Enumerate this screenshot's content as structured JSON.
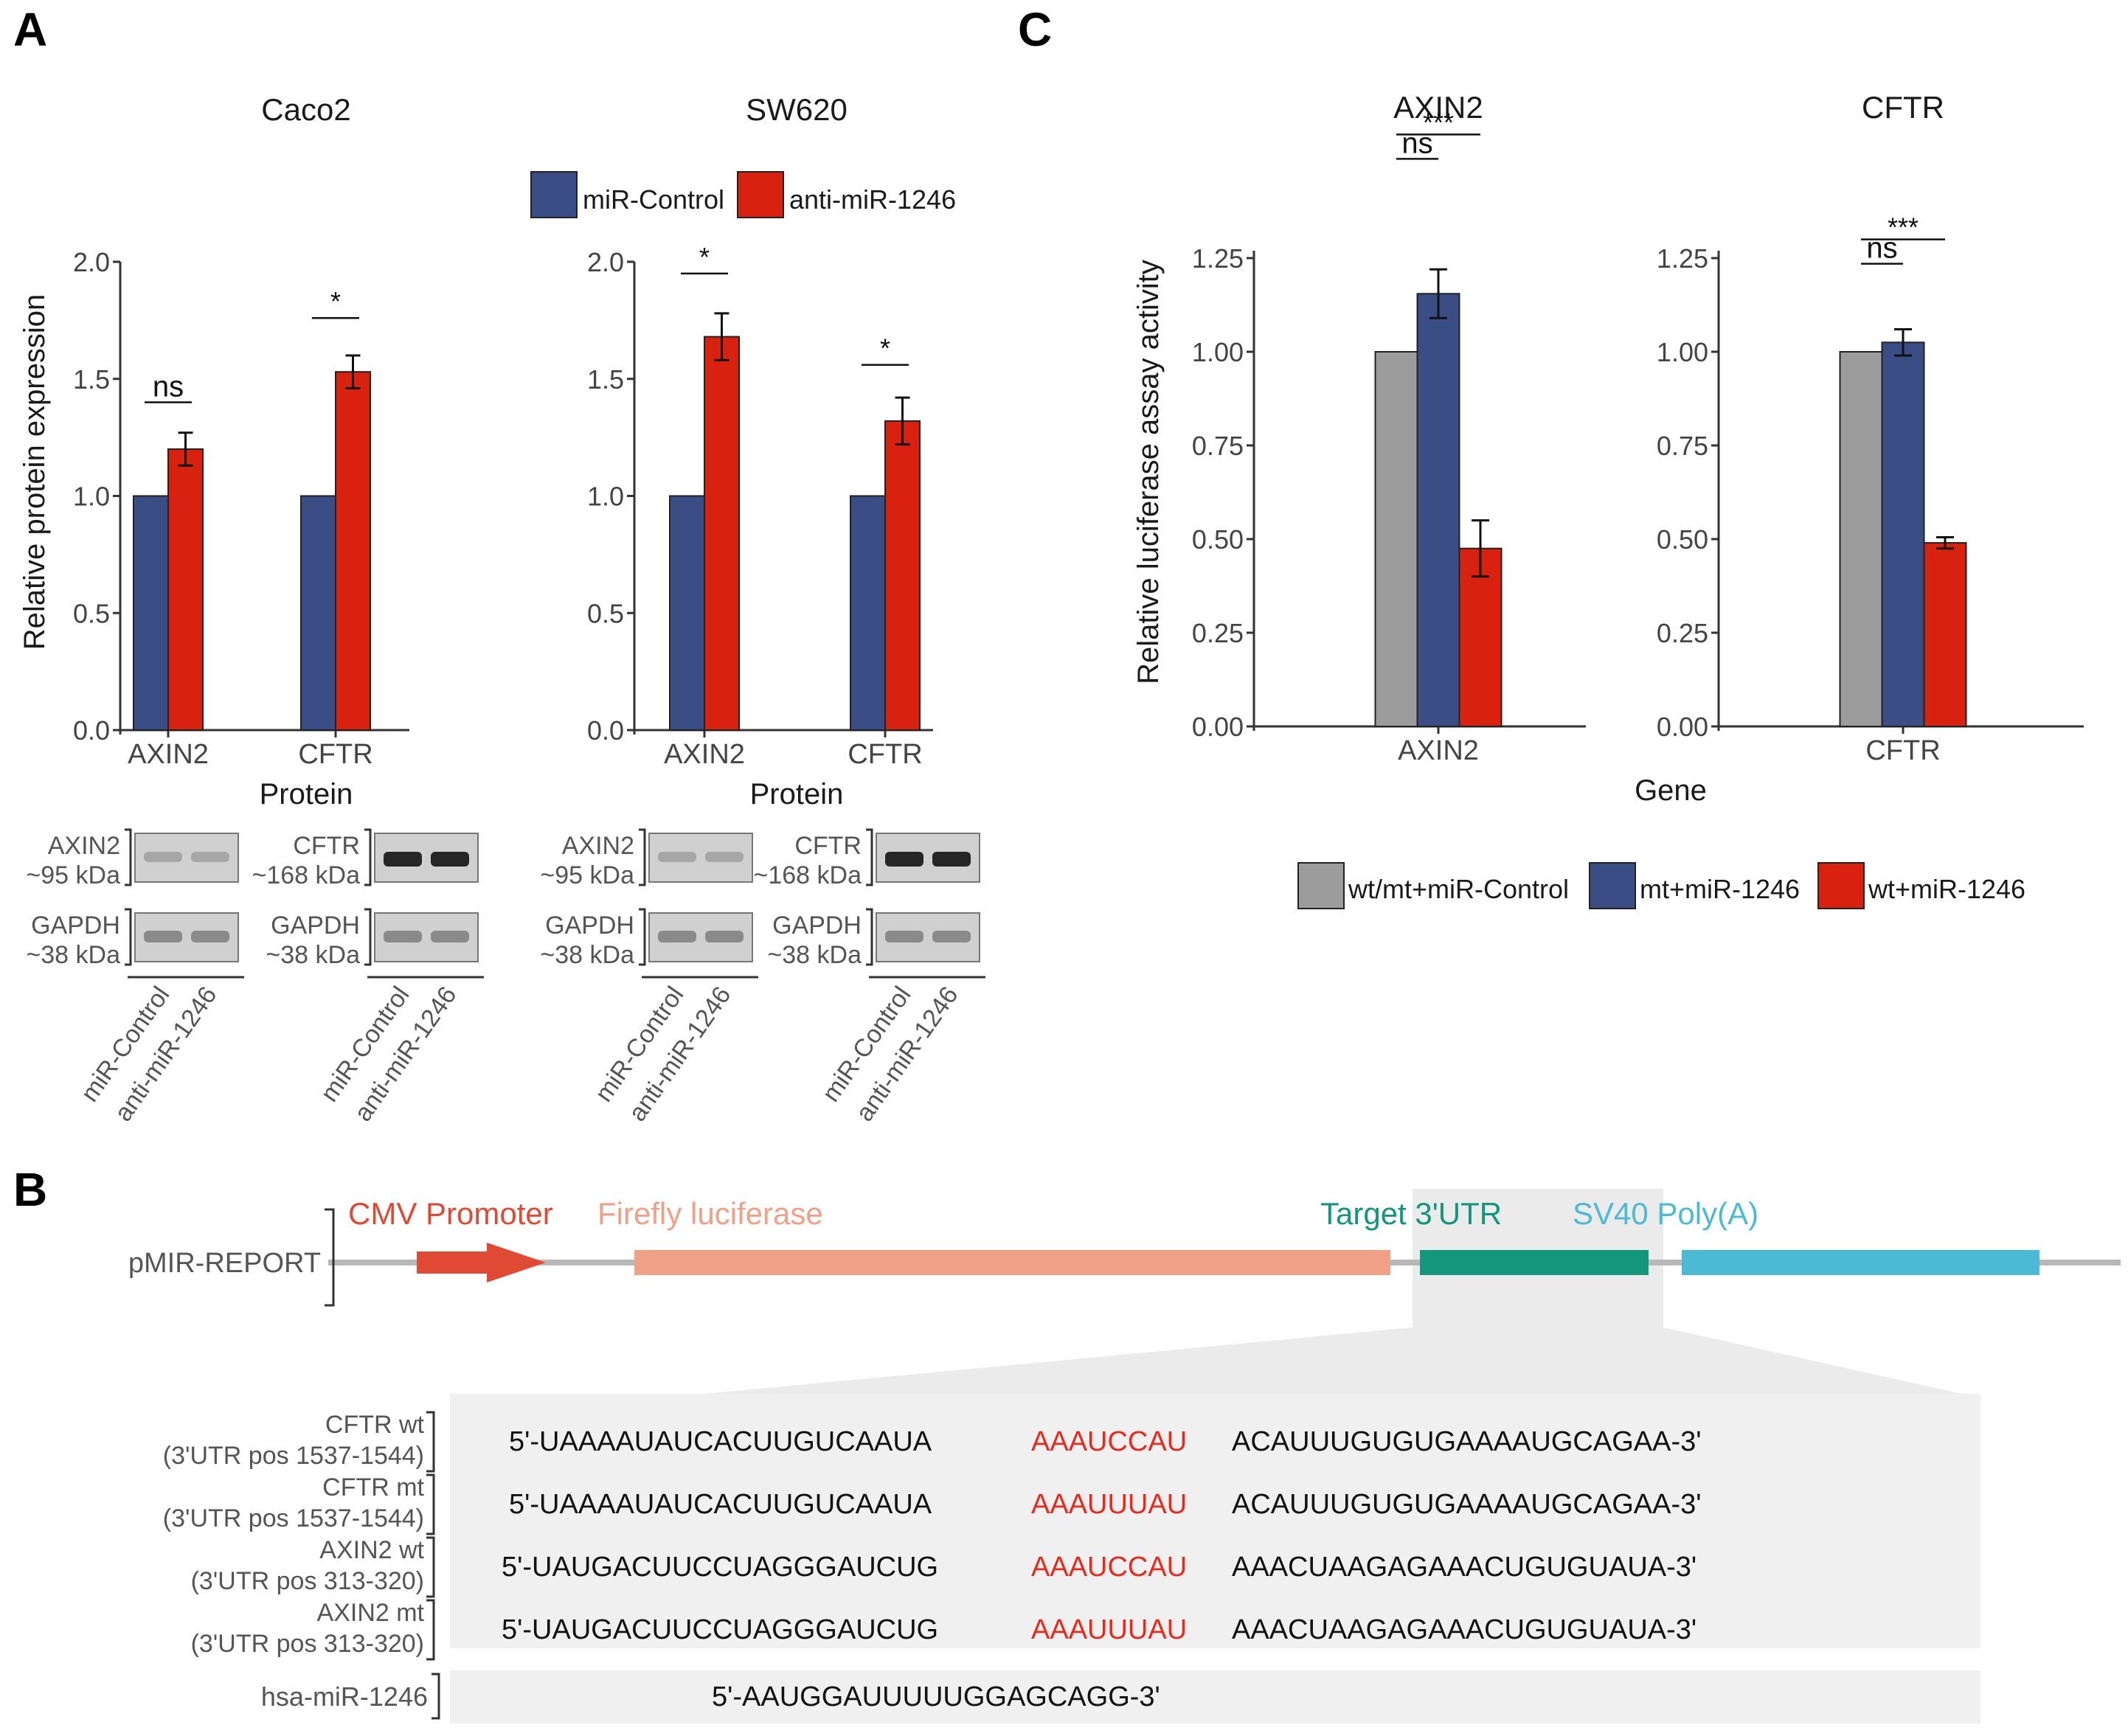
{
  "panel_labels": {
    "a": "A",
    "b": "B",
    "c": "C"
  },
  "colors": {
    "control": "#3a4e85",
    "anti": "#d9210f",
    "grey_bar": "#9c9c9c",
    "cmv": "#e04a35",
    "firefly": "#f1a088",
    "target": "#13967c",
    "sv40": "#4cbad5",
    "seed": "#e8291c",
    "zoom_fill": "#ebebeb"
  },
  "panel_a": {
    "legend": [
      "miR-Control",
      "anti-miR-1246"
    ],
    "ylabel": "Relative protein expression",
    "xlabel": "Protein",
    "blot_lanes": [
      "miR-Control",
      "anti-miR-1246"
    ],
    "blots": [
      {
        "target": "AXIN2",
        "target_kda": "~95 kDa",
        "loading": "GAPDH",
        "loading_kda": "~38 kDa"
      },
      {
        "target": "CFTR",
        "target_kda": "~168 kDa",
        "loading": "GAPDH",
        "loading_kda": "~38 kDa"
      },
      {
        "target": "AXIN2",
        "target_kda": "~95 kDa",
        "loading": "GAPDH",
        "loading_kda": "~38 kDa"
      },
      {
        "target": "CFTR",
        "target_kda": "~168 kDa",
        "loading": "GAPDH",
        "loading_kda": "~38 kDa"
      }
    ]
  },
  "panel_c": {
    "legend": [
      "wt/mt+miR-Control",
      "mt+miR-1246",
      "wt+miR-1246"
    ],
    "ylabel": "Relative luciferase assay activity",
    "xlabel": "Gene"
  },
  "chart_data": [
    {
      "type": "bar",
      "title": "Caco2",
      "categories": [
        "AXIN2",
        "CFTR"
      ],
      "series": [
        {
          "name": "miR-Control",
          "values": [
            1.0,
            1.0
          ],
          "errors": [
            0,
            0
          ]
        },
        {
          "name": "anti-miR-1246",
          "values": [
            1.2,
            1.53
          ],
          "errors": [
            0.07,
            0.07
          ]
        }
      ],
      "ylim": [
        0,
        2.0
      ],
      "yticks": [
        "0.0",
        "0.5",
        "1.0",
        "1.5",
        "2.0"
      ],
      "yvals": [
        0,
        0.5,
        1.0,
        1.5,
        2.0
      ],
      "ylabel": "Relative protein expression",
      "xlabel": "Protein",
      "significance": [
        {
          "category": 0,
          "label": "ns",
          "y": 1.4
        },
        {
          "category": 1,
          "label": "*",
          "y": 1.76
        }
      ]
    },
    {
      "type": "bar",
      "title": "SW620",
      "categories": [
        "AXIN2",
        "CFTR"
      ],
      "series": [
        {
          "name": "miR-Control",
          "values": [
            1.0,
            1.0
          ],
          "errors": [
            0,
            0
          ]
        },
        {
          "name": "anti-miR-1246",
          "values": [
            1.68,
            1.32
          ],
          "errors": [
            0.1,
            0.1
          ]
        }
      ],
      "ylim": [
        0,
        2.0
      ],
      "yticks": [
        "0.0",
        "0.5",
        "1.0",
        "1.5",
        "2.0"
      ],
      "yvals": [
        0,
        0.5,
        1.0,
        1.5,
        2.0
      ],
      "xlabel": "Protein",
      "significance": [
        {
          "category": 0,
          "label": "*",
          "y": 1.95
        },
        {
          "category": 1,
          "label": "*",
          "y": 1.56
        }
      ]
    },
    {
      "type": "bar",
      "title": "AXIN2",
      "categories": [
        "AXIN2"
      ],
      "series": [
        {
          "name": "wt/mt+miR-Control",
          "values": [
            1.0
          ],
          "errors": [
            0
          ]
        },
        {
          "name": "mt+miR-1246",
          "values": [
            1.155
          ],
          "errors": [
            0.065
          ]
        },
        {
          "name": "wt+miR-1246",
          "values": [
            0.475
          ],
          "errors": [
            0.075
          ]
        }
      ],
      "ylim": [
        0,
        1.25
      ],
      "yticks": [
        "0.00",
        "0.25",
        "0.50",
        "0.75",
        "1.00",
        "1.25"
      ],
      "yvals": [
        0,
        0.25,
        0.5,
        0.75,
        1.0,
        1.25
      ],
      "ylabel": "Relative luciferase assay activity",
      "xlabel": "Gene",
      "significance": [
        {
          "label": "ns",
          "from": 0,
          "to": 1,
          "y": 1.515
        },
        {
          "label": "***",
          "from": 0,
          "to": 2,
          "y": 1.58
        }
      ]
    },
    {
      "type": "bar",
      "title": "CFTR",
      "categories": [
        "CFTR"
      ],
      "series": [
        {
          "name": "wt/mt+miR-Control",
          "values": [
            1.0
          ],
          "errors": [
            0
          ]
        },
        {
          "name": "mt+miR-1246",
          "values": [
            1.025
          ],
          "errors": [
            0.035
          ]
        },
        {
          "name": "wt+miR-1246",
          "values": [
            0.49
          ],
          "errors": [
            0.015
          ]
        }
      ],
      "ylim": [
        0,
        1.25
      ],
      "yticks": [
        "0.00",
        "0.25",
        "0.50",
        "0.75",
        "1.00",
        "1.25"
      ],
      "yvals": [
        0,
        0.25,
        0.5,
        0.75,
        1.0,
        1.25
      ],
      "xlabel": "Gene",
      "significance": [
        {
          "label": "ns",
          "from": 0,
          "to": 1,
          "y": 1.235
        },
        {
          "label": "***",
          "from": 0,
          "to": 2,
          "y": 1.3
        }
      ]
    }
  ],
  "panel_b": {
    "construct": "pMIR-REPORT",
    "elements": [
      "CMV Promoter",
      "Firefly luciferase",
      "Target 3'UTR",
      "SV40 Poly(A)"
    ],
    "sequences": [
      {
        "name": "CFTR wt",
        "pos": "(3'UTR pos 1537-1544)",
        "left": "5'-UAAAAUAUCACUUGUCAAUA",
        "seed": "AAAUCCAU",
        "right": "ACAUUUGUGUGAAAAUGCAGAA-3'"
      },
      {
        "name": "CFTR mt",
        "pos": "(3'UTR pos 1537-1544)",
        "left": "5'-UAAAAUAUCACUUGUCAAUA",
        "seed": "AAAUUUAU",
        "right": "ACAUUUGUGUGAAAAUGCAGAA-3'"
      },
      {
        "name": "AXIN2 wt",
        "pos": "(3'UTR pos 313-320)",
        "left": "5'-UAUGACUUCCUAGGGAUCUG",
        "seed": "AAAUCCAU",
        "right": "AAACUAAGAGAAACUGUGUAUA-3'"
      },
      {
        "name": "AXIN2 mt",
        "pos": "(3'UTR pos 313-320)",
        "left": "5'-UAUGACUUCCUAGGGAUCUG",
        "seed": "AAAUUUAU",
        "right": "AAACUAAGAGAAACUGUGUAUA-3'"
      }
    ],
    "mirna_name": "hsa-miR-1246",
    "mirna_seq": "5'-AAUGGAUUUUUGGAGCAGG-3'"
  }
}
